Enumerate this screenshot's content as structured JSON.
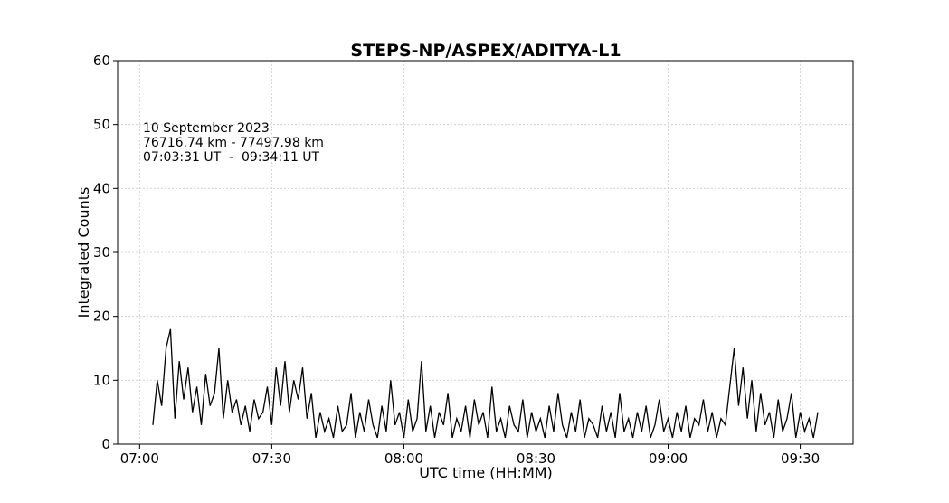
{
  "chart_data": {
    "type": "line",
    "title": "STEPS-NP/ASPEX/ADITYA-L1",
    "x_label": "UTC time (HH:MM)",
    "y_label": "Integrated Counts",
    "annotations": [
      "10 September 2023",
      "76716.74 km - 77497.98 km",
      "07:03:31 UT  -  09:34:11 UT"
    ],
    "grid": true,
    "xlim": [
      "06:55",
      "09:42"
    ],
    "xticks": [
      "07:00",
      "07:30",
      "08:00",
      "08:30",
      "09:00",
      "09:30"
    ],
    "ylim": [
      0,
      60
    ],
    "yticks": [
      0,
      10,
      20,
      30,
      40,
      50,
      60
    ],
    "x": [
      "07:03",
      "07:04",
      "07:05",
      "07:06",
      "07:07",
      "07:08",
      "07:09",
      "07:10",
      "07:11",
      "07:12",
      "07:13",
      "07:14",
      "07:15",
      "07:16",
      "07:17",
      "07:18",
      "07:19",
      "07:20",
      "07:21",
      "07:22",
      "07:23",
      "07:24",
      "07:25",
      "07:26",
      "07:27",
      "07:28",
      "07:29",
      "07:30",
      "07:31",
      "07:32",
      "07:33",
      "07:34",
      "07:35",
      "07:36",
      "07:37",
      "07:38",
      "07:39",
      "07:40",
      "07:41",
      "07:42",
      "07:43",
      "07:44",
      "07:45",
      "07:46",
      "07:47",
      "07:48",
      "07:49",
      "07:50",
      "07:51",
      "07:52",
      "07:53",
      "07:54",
      "07:55",
      "07:56",
      "07:57",
      "07:58",
      "07:59",
      "08:00",
      "08:01",
      "08:02",
      "08:03",
      "08:04",
      "08:05",
      "08:06",
      "08:07",
      "08:08",
      "08:09",
      "08:10",
      "08:11",
      "08:12",
      "08:13",
      "08:14",
      "08:15",
      "08:16",
      "08:17",
      "08:18",
      "08:19",
      "08:20",
      "08:21",
      "08:22",
      "08:23",
      "08:24",
      "08:25",
      "08:26",
      "08:27",
      "08:28",
      "08:29",
      "08:30",
      "08:31",
      "08:32",
      "08:33",
      "08:34",
      "08:35",
      "08:36",
      "08:37",
      "08:38",
      "08:39",
      "08:40",
      "08:41",
      "08:42",
      "08:43",
      "08:44",
      "08:45",
      "08:46",
      "08:47",
      "08:48",
      "08:49",
      "08:50",
      "08:51",
      "08:52",
      "08:53",
      "08:54",
      "08:55",
      "08:56",
      "08:57",
      "08:58",
      "08:59",
      "09:00",
      "09:01",
      "09:02",
      "09:03",
      "09:04",
      "09:05",
      "09:06",
      "09:07",
      "09:08",
      "09:09",
      "09:10",
      "09:11",
      "09:12",
      "09:13",
      "09:14",
      "09:15",
      "09:16",
      "09:17",
      "09:18",
      "09:19",
      "09:20",
      "09:21",
      "09:22",
      "09:23",
      "09:24",
      "09:25",
      "09:26",
      "09:27",
      "09:28",
      "09:29",
      "09:30",
      "09:31",
      "09:32",
      "09:33",
      "09:34"
    ],
    "series": [
      {
        "color": "#000000",
        "values": [
          3,
          10,
          6,
          15,
          18,
          4,
          13,
          7,
          12,
          5,
          9,
          3,
          11,
          6,
          8,
          15,
          4,
          10,
          5,
          7,
          3,
          6,
          2,
          7,
          4,
          5,
          9,
          3,
          12,
          6,
          13,
          5,
          10,
          7,
          12,
          4,
          8,
          1,
          5,
          2,
          4,
          1,
          6,
          2,
          3,
          8,
          1,
          5,
          2,
          7,
          3,
          1,
          6,
          2,
          10,
          3,
          5,
          1,
          7,
          2,
          4,
          13,
          2,
          6,
          1,
          5,
          3,
          8,
          1,
          4,
          2,
          6,
          1,
          7,
          3,
          5,
          1,
          9,
          2,
          4,
          1,
          6,
          3,
          2,
          7,
          1,
          5,
          2,
          4,
          1,
          6,
          2,
          8,
          3,
          1,
          5,
          2,
          7,
          1,
          4,
          3,
          1,
          6,
          2,
          5,
          1,
          8,
          2,
          4,
          1,
          5,
          2,
          6,
          1,
          3,
          7,
          2,
          4,
          1,
          5,
          2,
          6,
          1,
          4,
          3,
          7,
          2,
          5,
          1,
          4,
          3,
          9,
          15,
          6,
          12,
          4,
          10,
          2,
          8,
          3,
          5,
          1,
          7,
          2,
          4,
          8,
          1,
          5,
          2,
          4,
          1,
          5
        ]
      }
    ]
  }
}
